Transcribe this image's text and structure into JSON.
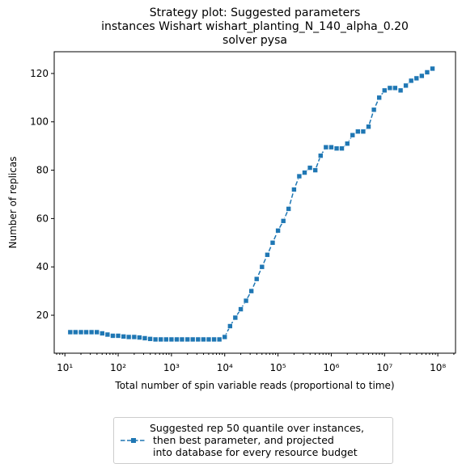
{
  "chart_data": {
    "type": "line",
    "title": "Strategy plot: Suggested parameters\ninstances Wishart wishart_planting_N_140_alpha_0.20\nsolver pysa",
    "xlabel": "Total number of spin variable reads (proportional to time)",
    "ylabel": "Number of replicas",
    "xscale": "log",
    "x": [
      12.6,
      15.8,
      20,
      25.1,
      31.6,
      39.8,
      50.1,
      63.1,
      79.4,
      100,
      126,
      158,
      200,
      251,
      316,
      398,
      501,
      631,
      794,
      1000,
      1260,
      1580,
      2000,
      2510,
      3160,
      3980,
      5010,
      6310,
      7940,
      10000,
      12600,
      15800,
      20000,
      25100,
      31600,
      39800,
      50100,
      63100,
      79400,
      100000,
      126000,
      158000,
      200000,
      251000,
      316000,
      398000,
      501000,
      631000,
      794000,
      1000000,
      1260000,
      1580000,
      2000000,
      2510000,
      3160000,
      3980000,
      5010000,
      6310000,
      7940000,
      10000000,
      12600000,
      15800000,
      20000000,
      25100000,
      31600000,
      39800000,
      50100000,
      63100000,
      79400000
    ],
    "series": [
      {
        "name": "Suggested rep 50 quantile over instances,\n then best parameter, and projected\n into database for every resource budget",
        "color": "#1f77b4",
        "values": [
          13,
          13,
          13,
          13,
          13,
          13,
          12.5,
          12,
          11.5,
          11.5,
          11.2,
          11,
          11,
          10.8,
          10.5,
          10.2,
          10,
          10,
          10,
          10,
          10,
          10,
          10,
          10,
          10,
          10,
          10,
          10,
          10,
          11,
          15.5,
          19,
          22.5,
          26,
          30,
          35,
          40,
          45,
          50,
          55,
          59,
          64,
          72,
          77.5,
          79,
          81,
          80,
          86,
          89.5,
          89.5,
          89,
          89,
          91,
          94.5,
          96,
          96,
          98,
          105,
          110,
          113,
          114,
          114,
          113,
          115,
          117,
          118,
          119,
          120.5,
          122
        ]
      }
    ],
    "xlim": [
      6.3,
      215000000
    ],
    "ylim": [
      4.3,
      129
    ],
    "xticks": [
      {
        "value": 10,
        "label": "10¹"
      },
      {
        "value": 100,
        "label": "10²"
      },
      {
        "value": 1000,
        "label": "10³"
      },
      {
        "value": 10000,
        "label": "10⁴"
      },
      {
        "value": 100000,
        "label": "10⁵"
      },
      {
        "value": 1000000,
        "label": "10⁶"
      },
      {
        "value": 10000000,
        "label": "10⁷"
      },
      {
        "value": 100000000,
        "label": "10⁸"
      }
    ],
    "yticks": [
      20,
      40,
      60,
      80,
      100,
      120
    ],
    "grid": false,
    "legend": "below"
  }
}
